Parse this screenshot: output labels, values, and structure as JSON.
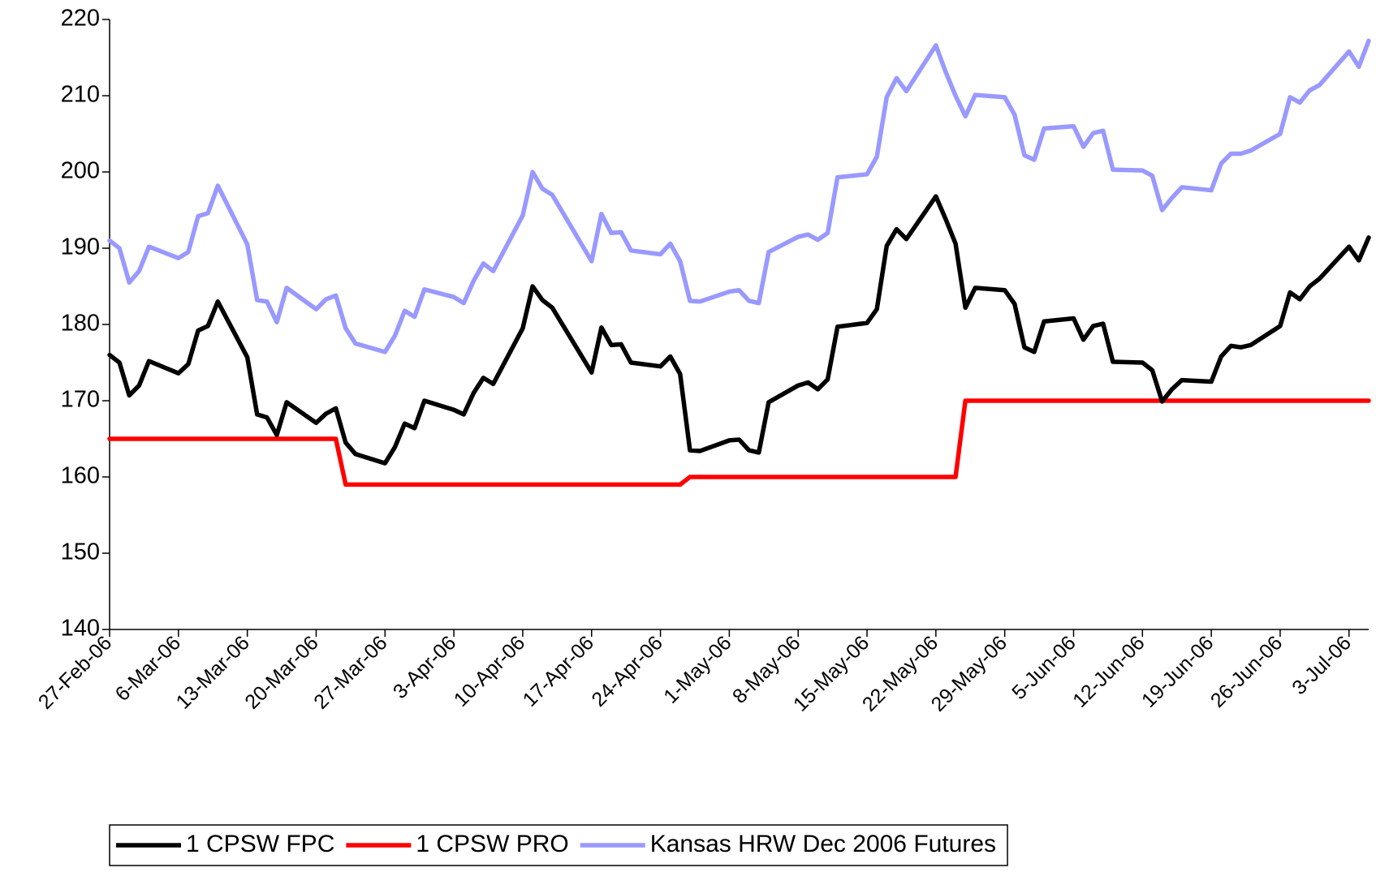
{
  "chart_data": {
    "type": "line",
    "x": [
      "2006-02-27",
      "2006-02-28",
      "2006-03-01",
      "2006-03-02",
      "2006-03-03",
      "2006-03-06",
      "2006-03-07",
      "2006-03-08",
      "2006-03-09",
      "2006-03-10",
      "2006-03-13",
      "2006-03-14",
      "2006-03-15",
      "2006-03-16",
      "2006-03-17",
      "2006-03-20",
      "2006-03-21",
      "2006-03-22",
      "2006-03-23",
      "2006-03-24",
      "2006-03-27",
      "2006-03-28",
      "2006-03-29",
      "2006-03-30",
      "2006-03-31",
      "2006-04-03",
      "2006-04-04",
      "2006-04-05",
      "2006-04-06",
      "2006-04-07",
      "2006-04-10",
      "2006-04-11",
      "2006-04-12",
      "2006-04-13",
      "2006-04-17",
      "2006-04-18",
      "2006-04-19",
      "2006-04-20",
      "2006-04-21",
      "2006-04-24",
      "2006-04-25",
      "2006-04-26",
      "2006-04-27",
      "2006-04-28",
      "2006-05-01",
      "2006-05-02",
      "2006-05-03",
      "2006-05-04",
      "2006-05-05",
      "2006-05-08",
      "2006-05-09",
      "2006-05-10",
      "2006-05-11",
      "2006-05-12",
      "2006-05-15",
      "2006-05-16",
      "2006-05-17",
      "2006-05-18",
      "2006-05-19",
      "2006-05-22",
      "2006-05-23",
      "2006-05-24",
      "2006-05-25",
      "2006-05-26",
      "2006-05-29",
      "2006-05-30",
      "2006-05-31",
      "2006-06-01",
      "2006-06-02",
      "2006-06-05",
      "2006-06-06",
      "2006-06-07",
      "2006-06-08",
      "2006-06-09",
      "2006-06-12",
      "2006-06-13",
      "2006-06-14",
      "2006-06-15",
      "2006-06-16",
      "2006-06-19",
      "2006-06-20",
      "2006-06-21",
      "2006-06-22",
      "2006-06-23",
      "2006-06-26",
      "2006-06-27",
      "2006-06-28",
      "2006-06-29",
      "2006-06-30",
      "2006-07-03",
      "2006-07-04",
      "2006-07-05"
    ],
    "series": [
      {
        "name": "1 CPSW FPC",
        "color": "#000000",
        "values": [
          176,
          175,
          170.7,
          172,
          175.2,
          173.6,
          174.8,
          179.2,
          179.8,
          183,
          175.7,
          168.2,
          167.8,
          165.5,
          169.8,
          167.1,
          168.3,
          169,
          164.5,
          163,
          161.8,
          163.9,
          167,
          166.4,
          170,
          168.8,
          168.2,
          171,
          173,
          172.2,
          179.5,
          185,
          183.2,
          182.2,
          173.7,
          179.6,
          177.3,
          177.4,
          175,
          174.5,
          175.8,
          173.5,
          163.5,
          163.4,
          164.8,
          164.9,
          163.5,
          163.2,
          169.8,
          172,
          172.4,
          171.5,
          172.8,
          179.7,
          180.2,
          182,
          190.3,
          192.5,
          191.2,
          196.8,
          193.8,
          190.6,
          182.2,
          184.8,
          184.5,
          182.7,
          177,
          176.4,
          180.4,
          180.8,
          178,
          179.8,
          180.1,
          175.1,
          175,
          174,
          169.9,
          171.5,
          172.7,
          172.5,
          175.8,
          177.2,
          177,
          177.3,
          179.8,
          184.2,
          183.3,
          185,
          186,
          190.2,
          188.4,
          191.4
        ]
      },
      {
        "name": "1 CPSW PRO",
        "color": "#ff0000",
        "values": [
          165,
          165,
          165,
          165,
          165,
          165,
          165,
          165,
          165,
          165,
          165,
          165,
          165,
          165,
          165,
          165,
          165,
          165,
          159,
          159,
          159,
          159,
          159,
          159,
          159,
          159,
          159,
          159,
          159,
          159,
          159,
          159,
          159,
          159,
          159,
          159,
          159,
          159,
          159,
          159,
          159,
          159,
          160,
          160,
          160,
          160,
          160,
          160,
          160,
          160,
          160,
          160,
          160,
          160,
          160,
          160,
          160,
          160,
          160,
          160,
          160,
          160,
          170,
          170,
          170,
          170,
          170,
          170,
          170,
          170,
          170,
          170,
          170,
          170,
          170,
          170,
          170,
          170,
          170,
          170,
          170,
          170,
          170,
          170,
          170,
          170,
          170,
          170,
          170,
          170,
          170,
          170
        ]
      },
      {
        "name": "Kansas HRW Dec 2006 Futures",
        "color": "#9999ff",
        "values": [
          191,
          190,
          185.5,
          187,
          190.2,
          188.7,
          189.5,
          194.2,
          194.6,
          198.2,
          190.5,
          183.2,
          183,
          180.3,
          184.8,
          182,
          183.3,
          183.8,
          179.5,
          177.5,
          176.4,
          178.5,
          181.8,
          181,
          184.6,
          183.6,
          182.8,
          185.7,
          188,
          187,
          194.3,
          200,
          197.8,
          197,
          188.3,
          194.5,
          192,
          192.1,
          189.7,
          189.2,
          190.6,
          188.3,
          183.1,
          183,
          184.3,
          184.5,
          183.1,
          182.8,
          189.5,
          191.5,
          191.8,
          191.1,
          192,
          199.3,
          199.7,
          202,
          209.8,
          212.3,
          210.6,
          216.6,
          213.1,
          210,
          207.3,
          210.1,
          209.8,
          207.5,
          202.2,
          201.6,
          205.7,
          206,
          203.3,
          205.1,
          205.4,
          200.3,
          200.2,
          199.5,
          195,
          196.6,
          198,
          197.6,
          201.1,
          202.4,
          202.4,
          202.8,
          205,
          209.8,
          209.1,
          210.7,
          211.4,
          215.8,
          213.8,
          217.2
        ]
      }
    ],
    "xlim": [
      "2006-02-27",
      "2006-07-05"
    ],
    "xticks": [
      {
        "value": "2006-02-27",
        "label": "27-Feb-06"
      },
      {
        "value": "2006-03-06",
        "label": "6-Mar-06"
      },
      {
        "value": "2006-03-13",
        "label": "13-Mar-06"
      },
      {
        "value": "2006-03-20",
        "label": "20-Mar-06"
      },
      {
        "value": "2006-03-27",
        "label": "27-Mar-06"
      },
      {
        "value": "2006-04-03",
        "label": "3-Apr-06"
      },
      {
        "value": "2006-04-10",
        "label": "10-Apr-06"
      },
      {
        "value": "2006-04-17",
        "label": "17-Apr-06"
      },
      {
        "value": "2006-04-24",
        "label": "24-Apr-06"
      },
      {
        "value": "2006-05-01",
        "label": "1-May-06"
      },
      {
        "value": "2006-05-08",
        "label": "8-May-06"
      },
      {
        "value": "2006-05-15",
        "label": "15-May-06"
      },
      {
        "value": "2006-05-22",
        "label": "22-May-06"
      },
      {
        "value": "2006-05-29",
        "label": "29-May-06"
      },
      {
        "value": "2006-06-05",
        "label": "5-Jun-06"
      },
      {
        "value": "2006-06-12",
        "label": "12-Jun-06"
      },
      {
        "value": "2006-06-19",
        "label": "19-Jun-06"
      },
      {
        "value": "2006-06-26",
        "label": "26-Jun-06"
      },
      {
        "value": "2006-07-03",
        "label": "3-Jul-06"
      }
    ],
    "ylim": [
      140,
      220
    ],
    "yticks": [
      140,
      150,
      160,
      170,
      180,
      190,
      200,
      210,
      220
    ],
    "grid": false,
    "legend": "bottom"
  }
}
